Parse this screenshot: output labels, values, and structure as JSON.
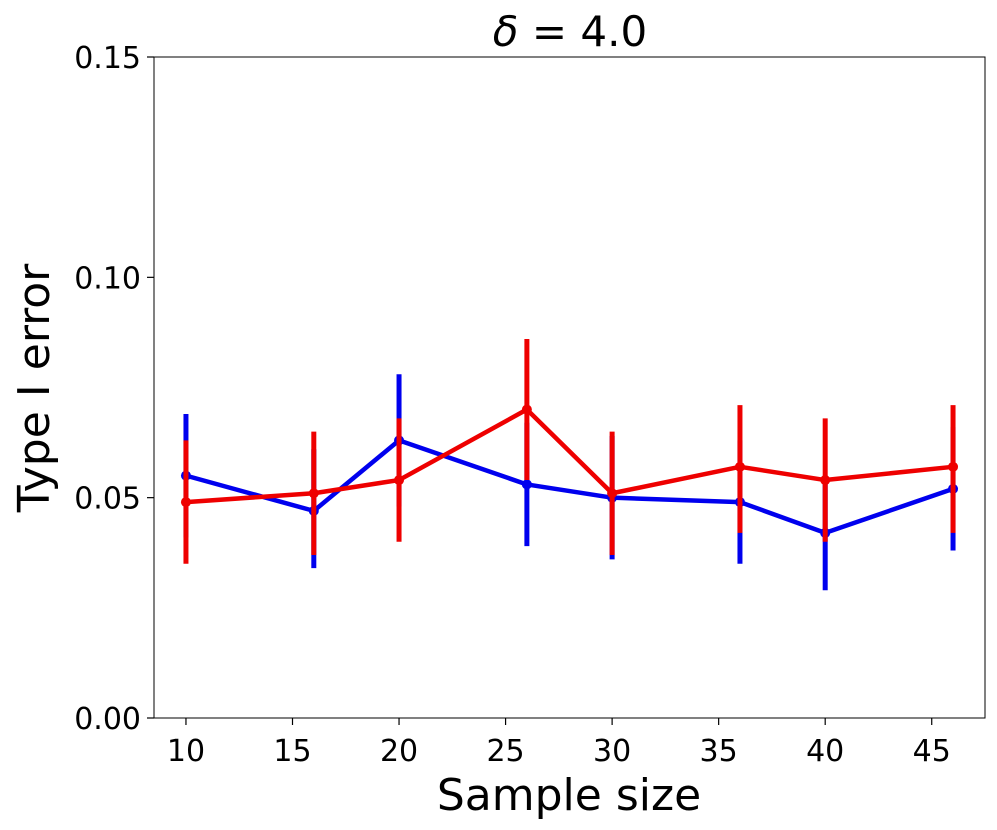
{
  "chart_data": {
    "type": "line",
    "title": "δ = 4.0",
    "title_parts": {
      "symbol": "δ",
      "rest": " = 4.0"
    },
    "xlabel": "Sample size",
    "ylabel": "Type I error",
    "xlim": [
      8.5,
      47.5
    ],
    "ylim": [
      0.0,
      0.15
    ],
    "x": [
      10,
      16,
      20,
      26,
      30,
      36,
      40,
      46
    ],
    "xticks": [
      10,
      15,
      20,
      25,
      30,
      35,
      40,
      45
    ],
    "xtick_labels": [
      "10",
      "15",
      "20",
      "25",
      "30",
      "35",
      "40",
      "45"
    ],
    "yticks": [
      0.0,
      0.05,
      0.1,
      0.15
    ],
    "ytick_labels": [
      "0.00",
      "0.05",
      "0.10",
      "0.15"
    ],
    "grid": false,
    "series": [
      {
        "name": "blue",
        "color": "#0000ee",
        "values": [
          0.055,
          0.047,
          0.063,
          0.053,
          0.05,
          0.049,
          0.042,
          0.052
        ],
        "err_low": [
          0.041,
          0.034,
          0.048,
          0.039,
          0.036,
          0.035,
          0.029,
          0.038
        ],
        "err_high": [
          0.069,
          0.061,
          0.078,
          0.067,
          0.064,
          0.063,
          0.055,
          0.066
        ]
      },
      {
        "name": "red",
        "color": "#ee0000",
        "values": [
          0.049,
          0.051,
          0.054,
          0.07,
          0.051,
          0.057,
          0.054,
          0.057
        ],
        "err_low": [
          0.035,
          0.037,
          0.04,
          0.054,
          0.037,
          0.042,
          0.04,
          0.042
        ],
        "err_high": [
          0.063,
          0.065,
          0.068,
          0.086,
          0.065,
          0.071,
          0.068,
          0.071
        ]
      }
    ]
  }
}
